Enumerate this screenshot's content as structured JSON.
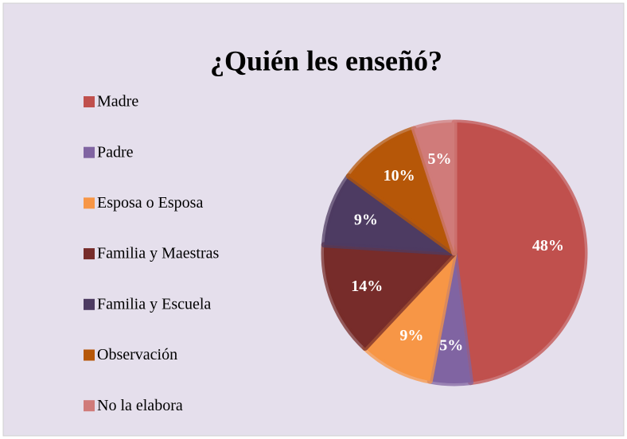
{
  "chart_data": {
    "type": "pie",
    "title": "¿Quién les enseñó?",
    "categories": [
      "Madre",
      "Padre",
      "Esposa o Esposa",
      "Familia y Maestras",
      "Familia y Escuela",
      "Observación",
      "No la elabora"
    ],
    "values": [
      48,
      5,
      9,
      14,
      9,
      10,
      5
    ],
    "value_labels": [
      "48%",
      "5%",
      "9%",
      "14%",
      "9%",
      "10%",
      "5%"
    ],
    "colors": [
      "#c0504d",
      "#8064a2",
      "#f79646",
      "#772c2a",
      "#4d3b62",
      "#b65708",
      "#d07b7a"
    ],
    "legend": "left"
  }
}
